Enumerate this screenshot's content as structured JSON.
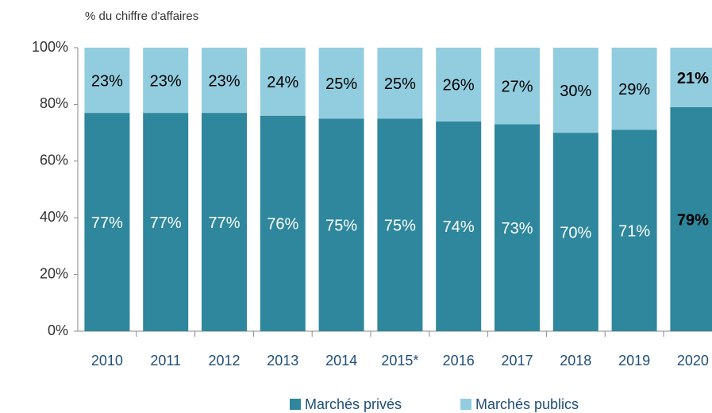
{
  "chart_data": {
    "type": "stacked_bar",
    "y_axis_label": "% du chiffre d'affaires",
    "categories": [
      "2010",
      "2011",
      "2012",
      "2013",
      "2014",
      "2015*",
      "2016",
      "2017",
      "2018",
      "2019",
      "2020"
    ],
    "series": [
      {
        "name": "Marchés privés",
        "color": "#2e879c",
        "values": [
          77,
          77,
          77,
          76,
          75,
          75,
          74,
          73,
          70,
          71,
          79
        ],
        "value_labels": [
          "77%",
          "77%",
          "77%",
          "76%",
          "75%",
          "75%",
          "74%",
          "73%",
          "70%",
          "71%",
          "79%"
        ]
      },
      {
        "name": "Marchés publics",
        "color": "#92cddf",
        "values": [
          23,
          23,
          23,
          24,
          25,
          25,
          26,
          27,
          30,
          29,
          21
        ],
        "value_labels": [
          "23%",
          "23%",
          "23%",
          "24%",
          "25%",
          "25%",
          "26%",
          "27%",
          "30%",
          "29%",
          "21%"
        ]
      }
    ],
    "ylim": [
      0,
      100
    ],
    "yticks": [
      {
        "value": 0,
        "label": "0%"
      },
      {
        "value": 20,
        "label": "20%"
      },
      {
        "value": 40,
        "label": "40%"
      },
      {
        "value": 60,
        "label": "60%"
      },
      {
        "value": 80,
        "label": "80%"
      },
      {
        "value": 100,
        "label": "100%"
      }
    ],
    "legend": "bottom"
  }
}
